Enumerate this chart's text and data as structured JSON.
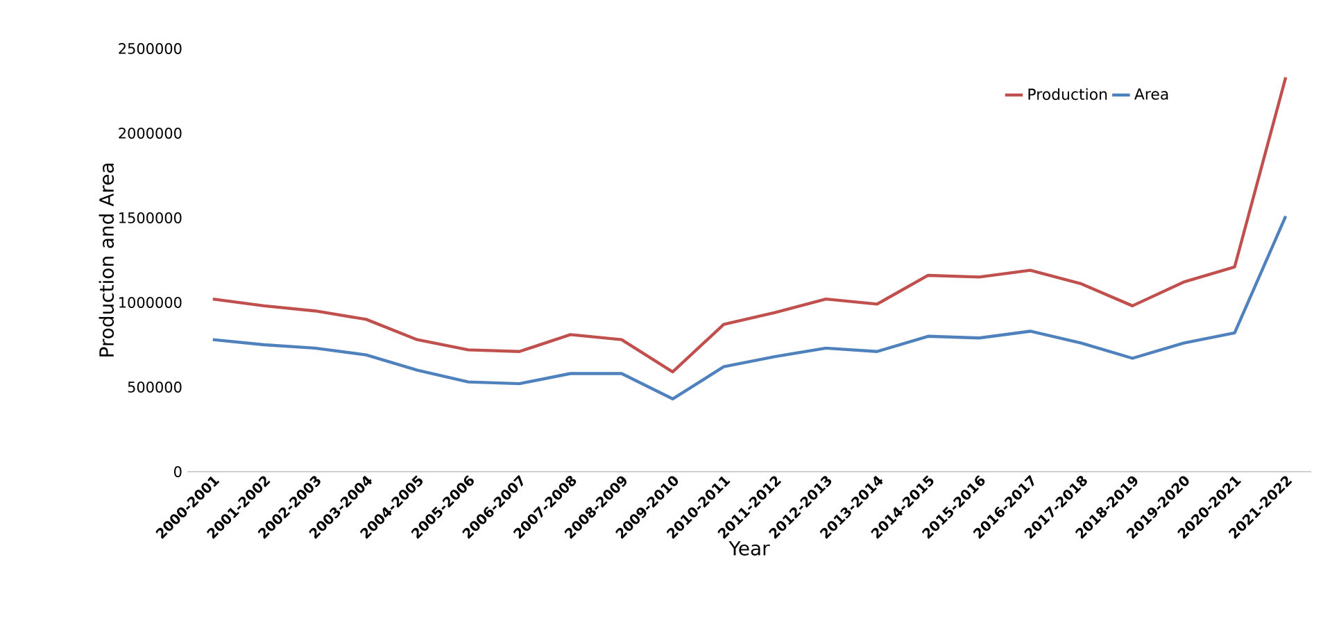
{
  "chart_data": {
    "type": "line",
    "xlabel": "Year",
    "ylabel": "Production and Area",
    "categories": [
      "2000-2001",
      "2001-2002",
      "2002-2003",
      "2003-2004",
      "2004-2005",
      "2005-2006",
      "2006-2007",
      "2007-2008",
      "2008-2009",
      "2009-2010",
      "2010-2011",
      "2011-2012",
      "2012-2013",
      "2013-2014",
      "2014-2015",
      "2015-2016",
      "2016-2017",
      "2017-2018",
      "2018-2019",
      "2019-2020",
      "2020-2021",
      "2021-2022"
    ],
    "series": [
      {
        "name": "Production",
        "color": "#c0504d",
        "values": [
          1020000,
          980000,
          950000,
          900000,
          780000,
          720000,
          710000,
          810000,
          780000,
          590000,
          870000,
          940000,
          1020000,
          990000,
          1160000,
          1150000,
          1190000,
          1110000,
          980000,
          1120000,
          1210000,
          2330000
        ]
      },
      {
        "name": "Area",
        "color": "#4f81bd",
        "values": [
          780000,
          750000,
          730000,
          690000,
          600000,
          530000,
          520000,
          580000,
          580000,
          430000,
          620000,
          680000,
          730000,
          710000,
          800000,
          790000,
          830000,
          760000,
          670000,
          760000,
          820000,
          1510000
        ]
      }
    ],
    "ylim": [
      0,
      2500000
    ],
    "yticks": [
      0,
      500000,
      1000000,
      1500000,
      2000000,
      2500000
    ],
    "grid": false,
    "legend": "top right",
    "marker": "none",
    "line_style": "solid"
  }
}
